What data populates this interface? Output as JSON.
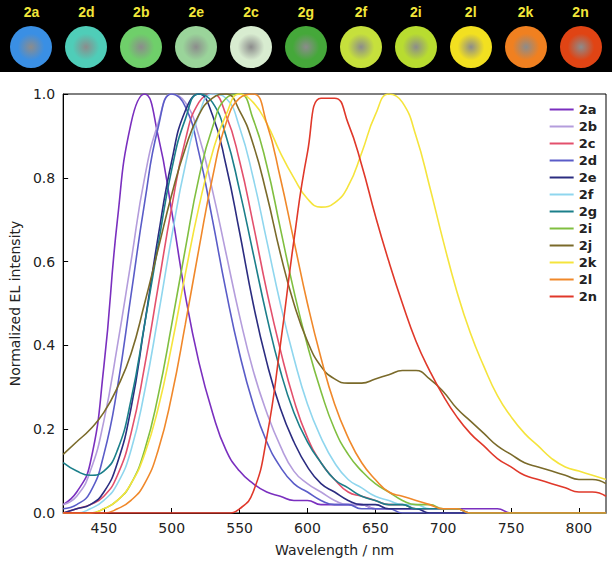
{
  "photo_strip": {
    "swatches": [
      {
        "label": "2a",
        "color": "#3a8fe4"
      },
      {
        "label": "2d",
        "color": "#4fcdb8"
      },
      {
        "label": "2b",
        "color": "#6fcf6a"
      },
      {
        "label": "2e",
        "color": "#9ad49a"
      },
      {
        "label": "2c",
        "color": "#d8ecd0"
      },
      {
        "label": "2g",
        "color": "#45a83a"
      },
      {
        "label": "2f",
        "color": "#c6e03c"
      },
      {
        "label": "2i",
        "color": "#b8dc30"
      },
      {
        "label": "2l",
        "color": "#f2e020"
      },
      {
        "label": "2k",
        "color": "#f08020"
      },
      {
        "label": "2n",
        "color": "#e04414"
      }
    ]
  },
  "chart_data": {
    "type": "line",
    "x_label": "Wavelength / nm",
    "y_label": "Normalized EL intensity",
    "xlim": [
      420,
      820
    ],
    "xticks": [
      450,
      500,
      550,
      600,
      650,
      700,
      750,
      800
    ],
    "ylim": [
      0,
      1.0
    ],
    "yticks": [
      {
        "value": 0,
        "label": "0.0"
      },
      0.2,
      0.4,
      0.6,
      0.8,
      {
        "value": 1.0,
        "label": "1.0"
      }
    ],
    "grid": false,
    "legend": "upper right",
    "x": [
      420,
      430,
      440,
      450,
      460,
      470,
      480,
      490,
      500,
      510,
      520,
      530,
      540,
      550,
      560,
      570,
      580,
      590,
      600,
      610,
      620,
      630,
      640,
      650,
      660,
      670,
      680,
      690,
      700,
      710,
      720,
      730,
      740,
      750,
      760,
      770,
      780,
      790,
      800,
      810,
      820
    ],
    "series": [
      {
        "name": "2a",
        "color": "#7a2fbf",
        "values": [
          0.02,
          0.05,
          0.12,
          0.35,
          0.7,
          0.93,
          1.0,
          0.9,
          0.72,
          0.52,
          0.36,
          0.24,
          0.15,
          0.1,
          0.07,
          0.05,
          0.04,
          0.03,
          0.03,
          0.02,
          0.02,
          0.02,
          0.02,
          0.01,
          0.01,
          0.01,
          0.01,
          0.01,
          0.01,
          0.01,
          0.01,
          0.01,
          0.01,
          0,
          0,
          0,
          0,
          0,
          0,
          0,
          0
        ]
      },
      {
        "name": "2b",
        "color": "#b49ddc",
        "values": [
          0.02,
          0.04,
          0.1,
          0.22,
          0.4,
          0.6,
          0.8,
          0.93,
          1.0,
          0.98,
          0.9,
          0.77,
          0.62,
          0.47,
          0.34,
          0.24,
          0.16,
          0.1,
          0.07,
          0.05,
          0.03,
          0.02,
          0.02,
          0.01,
          0.01,
          0.01,
          0.01,
          0,
          0,
          0,
          0,
          0,
          0,
          0,
          0,
          0,
          0,
          0,
          0,
          0,
          0
        ]
      },
      {
        "name": "2c",
        "color": "#e3506c",
        "values": [
          0,
          0.01,
          0.02,
          0.04,
          0.09,
          0.19,
          0.35,
          0.54,
          0.73,
          0.89,
          0.98,
          1.0,
          0.95,
          0.84,
          0.69,
          0.53,
          0.39,
          0.27,
          0.18,
          0.12,
          0.08,
          0.05,
          0.04,
          0.03,
          0.02,
          0.02,
          0.01,
          0.01,
          0.01,
          0.01,
          0,
          0,
          0,
          0,
          0,
          0,
          0,
          0,
          0,
          0,
          0
        ]
      },
      {
        "name": "2d",
        "color": "#5a5cc8",
        "values": [
          0.01,
          0.02,
          0.05,
          0.14,
          0.3,
          0.52,
          0.74,
          0.92,
          1.0,
          0.97,
          0.86,
          0.7,
          0.53,
          0.38,
          0.26,
          0.17,
          0.11,
          0.07,
          0.05,
          0.03,
          0.02,
          0.02,
          0.01,
          0.01,
          0.01,
          0,
          0,
          0,
          0,
          0,
          0,
          0,
          0,
          0,
          0,
          0,
          0,
          0,
          0,
          0,
          0
        ]
      },
      {
        "name": "2e",
        "color": "#2b2c80",
        "values": [
          0,
          0.01,
          0.02,
          0.05,
          0.12,
          0.25,
          0.45,
          0.66,
          0.84,
          0.96,
          1.0,
          0.95,
          0.83,
          0.67,
          0.5,
          0.36,
          0.25,
          0.17,
          0.11,
          0.07,
          0.05,
          0.03,
          0.02,
          0.02,
          0.01,
          0.01,
          0.01,
          0,
          0,
          0,
          0,
          0,
          0,
          0,
          0,
          0,
          0,
          0,
          0,
          0,
          0
        ]
      },
      {
        "name": "2f",
        "color": "#8fd6ee",
        "values": [
          0,
          0,
          0.01,
          0.03,
          0.07,
          0.15,
          0.29,
          0.47,
          0.66,
          0.83,
          0.95,
          1.0,
          0.99,
          0.92,
          0.8,
          0.65,
          0.5,
          0.37,
          0.26,
          0.18,
          0.12,
          0.08,
          0.06,
          0.04,
          0.03,
          0.02,
          0.02,
          0.01,
          0.01,
          0.01,
          0,
          0,
          0,
          0,
          0,
          0,
          0,
          0,
          0,
          0,
          0
        ]
      },
      {
        "name": "2g",
        "color": "#1b7f8a",
        "values": [
          0.12,
          0.1,
          0.09,
          0.1,
          0.15,
          0.27,
          0.45,
          0.64,
          0.82,
          0.94,
          1.0,
          0.98,
          0.9,
          0.77,
          0.62,
          0.47,
          0.34,
          0.24,
          0.17,
          0.12,
          0.08,
          0.06,
          0.04,
          0.03,
          0.02,
          0.02,
          0.01,
          0.01,
          0.01,
          0.01,
          0,
          0,
          0,
          0,
          0,
          0,
          0,
          0,
          0,
          0,
          0
        ]
      },
      {
        "name": "2i",
        "color": "#80bf40",
        "values": [
          0,
          0,
          0,
          0.01,
          0.03,
          0.07,
          0.15,
          0.28,
          0.45,
          0.63,
          0.8,
          0.92,
          0.99,
          1.0,
          0.94,
          0.83,
          0.68,
          0.53,
          0.4,
          0.29,
          0.2,
          0.14,
          0.1,
          0.07,
          0.05,
          0.03,
          0.02,
          0.02,
          0.01,
          0.01,
          0,
          0,
          0,
          0,
          0,
          0,
          0,
          0,
          0,
          0,
          0
        ]
      },
      {
        "name": "2j",
        "color": "#7a6a2a",
        "values": [
          0.14,
          0.17,
          0.2,
          0.24,
          0.3,
          0.38,
          0.5,
          0.63,
          0.76,
          0.87,
          0.95,
          0.99,
          1.0,
          0.96,
          0.88,
          0.76,
          0.62,
          0.5,
          0.41,
          0.35,
          0.32,
          0.31,
          0.31,
          0.32,
          0.33,
          0.34,
          0.34,
          0.32,
          0.29,
          0.25,
          0.22,
          0.19,
          0.16,
          0.14,
          0.12,
          0.11,
          0.1,
          0.09,
          0.08,
          0.08,
          0.07
        ]
      },
      {
        "name": "2k",
        "color": "#f5e43c",
        "values": [
          0,
          0,
          0,
          0.01,
          0.03,
          0.07,
          0.14,
          0.25,
          0.4,
          0.57,
          0.73,
          0.86,
          0.95,
          1.0,
          0.98,
          0.93,
          0.86,
          0.8,
          0.75,
          0.73,
          0.74,
          0.78,
          0.86,
          0.95,
          1.0,
          0.98,
          0.9,
          0.78,
          0.65,
          0.53,
          0.43,
          0.35,
          0.28,
          0.23,
          0.19,
          0.16,
          0.13,
          0.11,
          0.1,
          0.09,
          0.08
        ]
      },
      {
        "name": "2l",
        "color": "#f0882a",
        "values": [
          0,
          0,
          0,
          0,
          0.01,
          0.03,
          0.07,
          0.15,
          0.28,
          0.45,
          0.63,
          0.8,
          0.93,
          0.99,
          1.0,
          0.93,
          0.8,
          0.65,
          0.5,
          0.37,
          0.26,
          0.18,
          0.12,
          0.08,
          0.05,
          0.04,
          0.03,
          0.02,
          0.01,
          0.01,
          0,
          0,
          0,
          0,
          0,
          0,
          0,
          0,
          0,
          0,
          0
        ]
      },
      {
        "name": "2n",
        "color": "#e0382a",
        "values": [
          0,
          0,
          0,
          0,
          0,
          0,
          0,
          0,
          0,
          0,
          0,
          0,
          0,
          0.01,
          0.05,
          0.18,
          0.4,
          0.65,
          0.86,
          0.99,
          0.99,
          0.93,
          0.83,
          0.71,
          0.6,
          0.5,
          0.41,
          0.34,
          0.28,
          0.23,
          0.19,
          0.16,
          0.13,
          0.11,
          0.09,
          0.08,
          0.07,
          0.06,
          0.05,
          0.05,
          0.04
        ]
      }
    ]
  }
}
